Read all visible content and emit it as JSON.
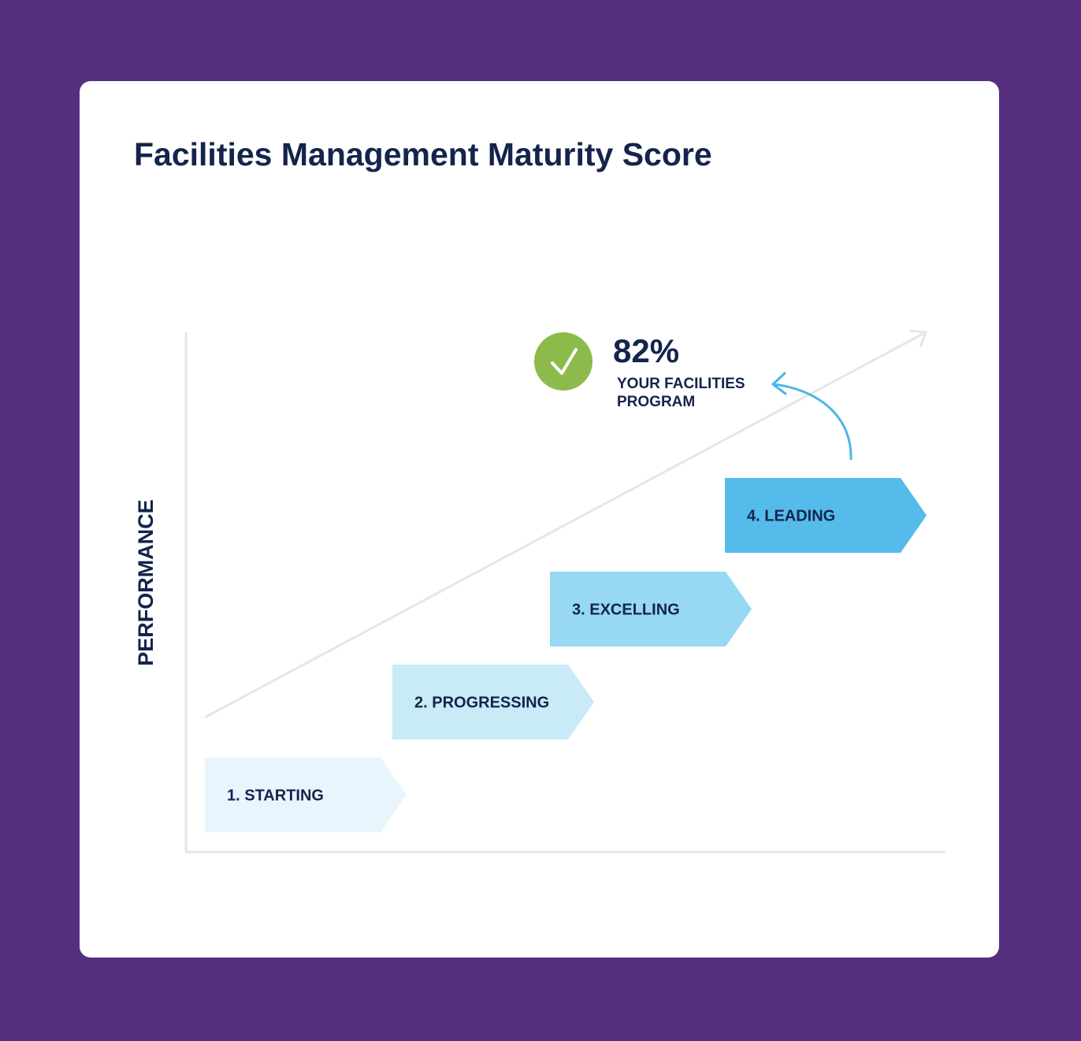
{
  "title": "Facilities Management Maturity Score",
  "axis_label": "PERFORMANCE",
  "stages": [
    "1. STARTING",
    "2. PROGRESSING",
    "3. EXCELLING",
    "4. LEADING"
  ],
  "score": "82%",
  "score_label": [
    "YOUR FACILITIES",
    "PROGRAM"
  ]
}
